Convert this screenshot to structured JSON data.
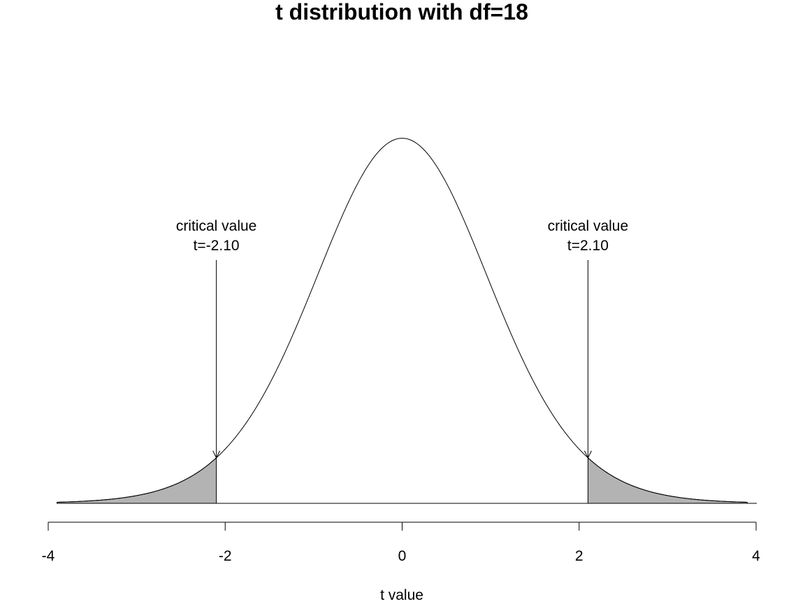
{
  "chart_data": {
    "type": "area",
    "title": "t distribution with df=18",
    "xlabel": "t value",
    "ylabel": "",
    "df": 18,
    "xlim": [
      -4,
      4
    ],
    "x_ticks": [
      -4,
      -2,
      0,
      2,
      4
    ],
    "x_tick_labels": [
      "-4",
      "-2",
      "0",
      "2",
      "4"
    ],
    "density_curve": {
      "x": [
        -3.9,
        -3.5,
        -3.0,
        -2.5,
        -2.1,
        -1.5,
        -1.0,
        -0.5,
        0.0,
        0.5,
        1.0,
        1.5,
        2.1,
        2.5,
        3.0,
        3.5,
        3.9
      ],
      "y": [
        0.0012,
        0.0028,
        0.0071,
        0.0183,
        0.0379,
        0.1255,
        0.2353,
        0.3432,
        0.394,
        0.3432,
        0.2353,
        0.1255,
        0.0379,
        0.0183,
        0.0071,
        0.0028,
        0.0012
      ]
    },
    "shaded_regions": [
      {
        "from": -3.9,
        "to": -2.1,
        "color": "#b3b3b3"
      },
      {
        "from": 2.1,
        "to": 3.9,
        "color": "#b3b3b3"
      }
    ],
    "annotations": [
      {
        "line1": "critical value",
        "line2": "t=-2.10",
        "x": -2.1
      },
      {
        "line1": "critical value",
        "line2": "t=2.10",
        "x": 2.1
      }
    ],
    "grid": false,
    "colors": {
      "curve": "#000000",
      "fill": "#b3b3b3",
      "axis": "#000000"
    }
  }
}
